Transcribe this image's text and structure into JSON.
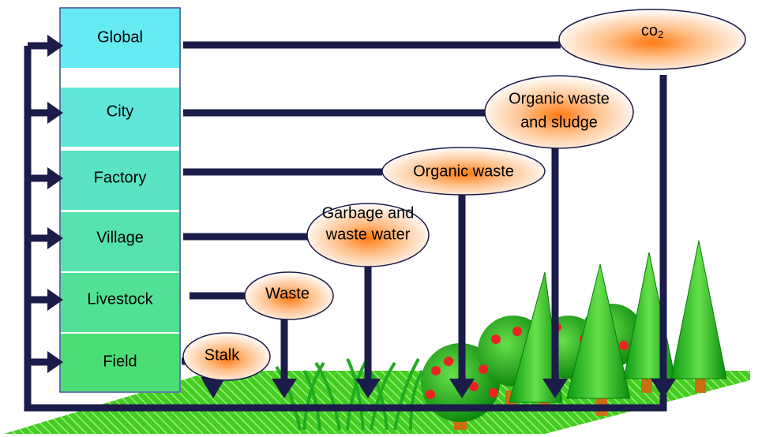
{
  "levels": [
    "Global",
    "City",
    "Factory",
    "Village",
    "Livestock",
    "Field"
  ],
  "outputs": {
    "co2": {
      "text": "co",
      "subscript": "2"
    },
    "sludge": [
      "Organic waste",
      "and sludge"
    ],
    "organic": [
      "Organic waste"
    ],
    "garbage": [
      "Garbage and",
      "waste water"
    ],
    "waste": [
      "Waste"
    ],
    "stalk": [
      "Stalk"
    ]
  }
}
